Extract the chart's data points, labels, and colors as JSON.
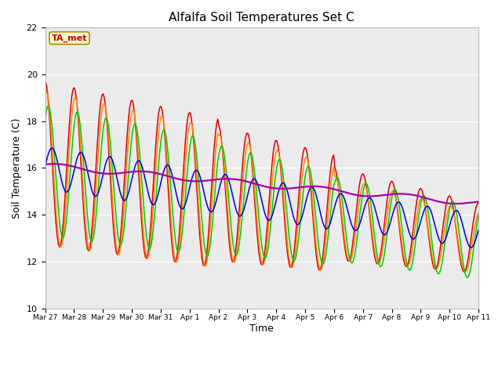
{
  "title": "Alfalfa Soil Temperatures Set C",
  "xlabel": "Time",
  "ylabel": "Soil Temperature (C)",
  "ylim": [
    10,
    22
  ],
  "yticks": [
    10,
    12,
    14,
    16,
    18,
    20,
    22
  ],
  "background_color": "#e8e8e8",
  "plot_bg": "#ebebeb",
  "series_colors": {
    "-2cm": "#dd0000",
    "-4cm": "#ff8800",
    "-8cm": "#00cc00",
    "-16cm": "#0000dd",
    "-32cm": "#aa00aa"
  },
  "annotation_text": "TA_met",
  "annotation_bg": "#ffffcc",
  "annotation_border": "#aa8800",
  "tick_labels": [
    "Mar 27",
    "Mar 28",
    "Mar 29",
    "Mar 30",
    "Mar 31",
    "Apr 1",
    "Apr 2",
    "Apr 3",
    "Apr 4",
    "Apr 5",
    "Apr 6",
    "Apr 7",
    "Apr 8",
    "Apr 9",
    "Apr 10",
    "Apr 11"
  ]
}
